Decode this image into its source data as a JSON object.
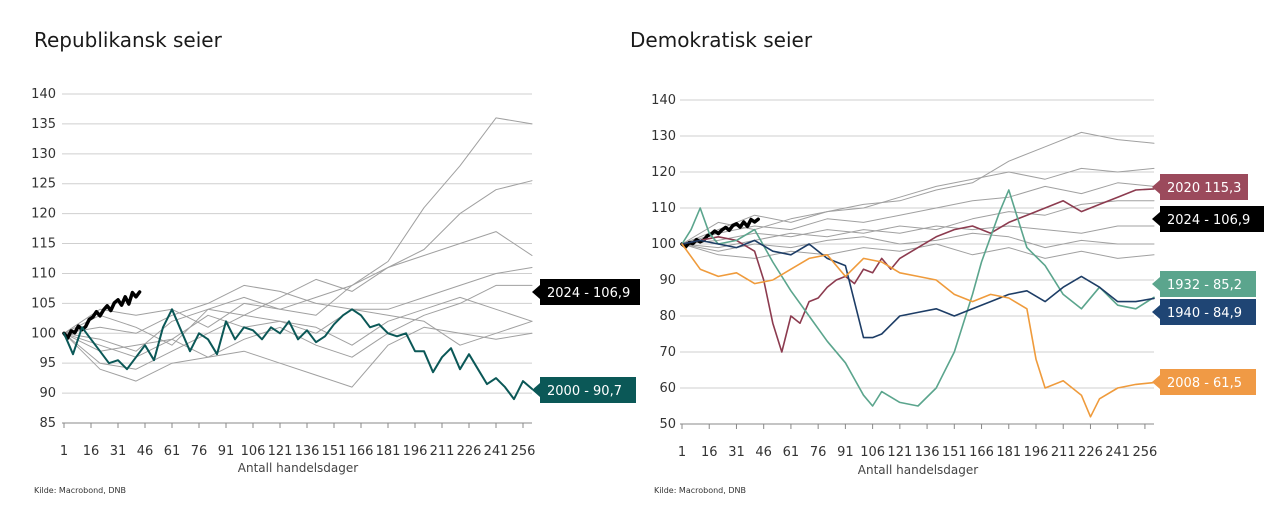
{
  "source_label": "Kilde: Macrobond, DNB",
  "chart_data": [
    {
      "type": "line",
      "title": "Republikansk seier",
      "xlabel": "Antall handelsdager",
      "ylabel": "",
      "ylim": [
        85,
        140
      ],
      "yticks": [
        85,
        90,
        95,
        100,
        105,
        110,
        115,
        120,
        125,
        130,
        135,
        140
      ],
      "xlim": [
        1,
        261
      ],
      "xticks": [
        1,
        16,
        31,
        46,
        61,
        76,
        91,
        106,
        121,
        136,
        151,
        166,
        181,
        196,
        211,
        226,
        241,
        256
      ],
      "grid": "horizontal",
      "series": [
        {
          "name": "2024 - 106,9",
          "color": "#000000",
          "width": 3.5,
          "label": "2024 - 106,9",
          "label_color": "#000000",
          "x": [
            1,
            3,
            5,
            7,
            9,
            11,
            13,
            15,
            17,
            19,
            21,
            23,
            25,
            27,
            29,
            31,
            33,
            35,
            37,
            39,
            41,
            43
          ],
          "y": [
            100,
            99.2,
            100.4,
            100.1,
            101.2,
            100.6,
            101.1,
            102.3,
            102.7,
            103.6,
            102.9,
            103.9,
            104.6,
            103.8,
            105.1,
            105.6,
            104.7,
            106.1,
            104.9,
            106.8,
            106.1,
            106.9
          ]
        },
        {
          "name": "2000 - 90,7",
          "color": "#0b5857",
          "width": 2,
          "label": "2000 - 90,7",
          "label_color": "#0b5857",
          "x": [
            1,
            6,
            11,
            16,
            21,
            26,
            31,
            36,
            41,
            46,
            51,
            56,
            61,
            66,
            71,
            76,
            81,
            86,
            91,
            96,
            101,
            106,
            111,
            116,
            121,
            126,
            131,
            136,
            141,
            146,
            151,
            156,
            161,
            166,
            171,
            176,
            181,
            186,
            191,
            196,
            201,
            206,
            211,
            216,
            221,
            226,
            231,
            236,
            241,
            246,
            251,
            256,
            261
          ],
          "y": [
            100,
            96.5,
            101,
            99,
            97,
            95,
            95.5,
            94,
            96,
            98,
            95.5,
            101,
            104,
            100.5,
            97,
            100,
            99,
            96.5,
            102,
            99,
            101,
            100.5,
            99,
            101,
            100,
            102,
            99,
            100.5,
            98.5,
            99.5,
            101.5,
            103,
            104,
            103,
            101,
            101.5,
            100,
            99.5,
            100,
            97,
            97,
            93.5,
            96,
            97.5,
            94,
            96.5,
            94,
            91.5,
            92.5,
            91,
            89,
            92,
            90.7
          ]
        },
        {
          "name": "",
          "color": "#a0a0a0",
          "width": 1,
          "x": [
            1,
            21,
            41,
            61,
            81,
            101,
            121,
            141,
            161,
            181,
            201,
            221,
            241,
            261
          ],
          "y": [
            100,
            103,
            101,
            98,
            104,
            106,
            104,
            103,
            108,
            112,
            121,
            128,
            136,
            135
          ]
        },
        {
          "name": "",
          "color": "#a0a0a0",
          "width": 1,
          "x": [
            1,
            21,
            41,
            61,
            81,
            101,
            121,
            141,
            161,
            181,
            201,
            221,
            241,
            261
          ],
          "y": [
            100,
            104,
            103,
            104,
            101,
            105,
            104,
            106,
            108,
            111,
            114,
            120,
            124,
            125.5
          ]
        },
        {
          "name": "",
          "color": "#a0a0a0",
          "width": 1,
          "x": [
            1,
            21,
            41,
            61,
            81,
            101,
            121,
            141,
            161,
            181,
            201,
            221,
            241,
            261
          ],
          "y": [
            100,
            99,
            97,
            102,
            104,
            103,
            106,
            109,
            107,
            111,
            113,
            115,
            117,
            113
          ]
        },
        {
          "name": "",
          "color": "#a0a0a0",
          "width": 1,
          "x": [
            1,
            21,
            41,
            61,
            81,
            101,
            121,
            141,
            161,
            181,
            201,
            221,
            241,
            261
          ],
          "y": [
            100,
            98,
            96,
            99,
            103,
            101,
            102,
            100,
            104,
            104,
            106,
            108,
            110,
            111
          ]
        },
        {
          "name": "",
          "color": "#a0a0a0",
          "width": 1,
          "x": [
            1,
            21,
            41,
            61,
            81,
            101,
            121,
            141,
            161,
            181,
            201,
            221,
            241,
            261
          ],
          "y": [
            100,
            95,
            94,
            97,
            100,
            103,
            102,
            101,
            98,
            102,
            104,
            106,
            104,
            102
          ]
        },
        {
          "name": "",
          "color": "#a0a0a0",
          "width": 1,
          "x": [
            1,
            21,
            41,
            61,
            81,
            101,
            121,
            141,
            161,
            181,
            201,
            221,
            241,
            261
          ],
          "y": [
            100,
            94,
            92,
            95,
            96,
            99,
            101,
            98,
            96,
            100,
            103,
            105,
            108,
            108
          ]
        },
        {
          "name": "",
          "color": "#a0a0a0",
          "width": 1,
          "x": [
            1,
            21,
            41,
            61,
            81,
            101,
            121,
            141,
            161,
            181,
            201,
            221,
            241,
            261
          ],
          "y": [
            100,
            97,
            98,
            99,
            96,
            97,
            95,
            93,
            91,
            98,
            101,
            100,
            99,
            100
          ]
        },
        {
          "name": "",
          "color": "#a0a0a0",
          "width": 1,
          "x": [
            1,
            21,
            41,
            61,
            81,
            101,
            121,
            141,
            161,
            181,
            201,
            221,
            241,
            261
          ],
          "y": [
            100,
            101,
            100,
            103,
            105,
            108,
            107,
            105,
            104,
            103,
            102,
            98,
            100,
            102
          ]
        }
      ]
    },
    {
      "type": "line",
      "title": "Demokratisk seier",
      "xlabel": "Antall handelsdager",
      "ylabel": "",
      "ylim": [
        50,
        140
      ],
      "yticks": [
        50,
        60,
        70,
        80,
        90,
        100,
        110,
        120,
        130,
        140
      ],
      "xlim": [
        1,
        261
      ],
      "xticks": [
        1,
        16,
        31,
        46,
        61,
        76,
        91,
        106,
        121,
        136,
        151,
        166,
        181,
        196,
        211,
        226,
        241,
        256
      ],
      "grid": "horizontal",
      "series": [
        {
          "name": "2024 - 106,9",
          "color": "#000000",
          "width": 3.5,
          "label": "2024 - 106,9",
          "label_color": "#000000",
          "x": [
            1,
            3,
            5,
            7,
            9,
            11,
            13,
            15,
            17,
            19,
            21,
            23,
            25,
            27,
            29,
            31,
            33,
            35,
            37,
            39,
            41,
            43
          ],
          "y": [
            100,
            99.2,
            100.4,
            100.1,
            101.2,
            100.6,
            101.1,
            102.3,
            102.7,
            103.6,
            102.9,
            103.9,
            104.6,
            103.8,
            105.1,
            105.6,
            104.7,
            106.1,
            104.9,
            106.8,
            106.1,
            106.9
          ]
        },
        {
          "name": "2020 115,3",
          "color": "#8c3b4f",
          "width": 1.6,
          "label": "2020 115,3",
          "label_color": "#9b4a5c",
          "x": [
            1,
            11,
            21,
            31,
            41,
            46,
            51,
            56,
            61,
            66,
            71,
            76,
            81,
            86,
            91,
            96,
            101,
            106,
            111,
            116,
            121,
            131,
            141,
            151,
            161,
            171,
            181,
            191,
            201,
            211,
            221,
            231,
            241,
            251,
            261
          ],
          "y": [
            100,
            101,
            102,
            101,
            98,
            90,
            78,
            70,
            80,
            78,
            84,
            85,
            88,
            90,
            91,
            89,
            93,
            92,
            96,
            93,
            96,
            99,
            102,
            104,
            105,
            103,
            106,
            108,
            110,
            112,
            109,
            111,
            113,
            115,
            115.3
          ]
        },
        {
          "name": "1932 - 85,2",
          "color": "#5ba58d",
          "width": 1.6,
          "label": "1932 - 85,2",
          "label_color": "#5ba58d",
          "x": [
            1,
            6,
            11,
            16,
            21,
            31,
            41,
            51,
            61,
            71,
            81,
            91,
            101,
            106,
            111,
            121,
            131,
            141,
            151,
            161,
            166,
            171,
            176,
            181,
            186,
            191,
            201,
            211,
            221,
            231,
            241,
            251,
            261
          ],
          "y": [
            100,
            104,
            110,
            103,
            100,
            101,
            104,
            95,
            87,
            80,
            73,
            67,
            58,
            55,
            59,
            56,
            55,
            60,
            70,
            86,
            95,
            102,
            109,
            115,
            107,
            99,
            94,
            86,
            82,
            88,
            83,
            82,
            85.2
          ]
        },
        {
          "name": "1940 - 84,9",
          "color": "#1d3d66",
          "width": 1.6,
          "label": "1940 - 84,9",
          "label_color": "#1f4574",
          "x": [
            1,
            11,
            21,
            31,
            41,
            51,
            61,
            71,
            81,
            91,
            101,
            106,
            111,
            121,
            131,
            141,
            151,
            161,
            171,
            181,
            191,
            201,
            211,
            221,
            231,
            241,
            251,
            261
          ],
          "y": [
            100,
            101,
            100,
            99,
            101,
            98,
            97,
            100,
            96,
            94,
            74,
            74,
            75,
            80,
            81,
            82,
            80,
            82,
            84,
            86,
            87,
            84,
            88,
            91,
            88,
            84,
            84,
            84.9
          ]
        },
        {
          "name": "2008 - 61,5",
          "color": "#ef9b3c",
          "width": 1.6,
          "label": "2008 - 61,5",
          "label_color": "#f09a45",
          "x": [
            1,
            11,
            21,
            31,
            41,
            51,
            61,
            71,
            81,
            91,
            101,
            111,
            121,
            131,
            141,
            151,
            161,
            171,
            181,
            191,
            196,
            201,
            211,
            221,
            226,
            231,
            241,
            251,
            261
          ],
          "y": [
            100,
            93,
            91,
            92,
            89,
            90,
            93,
            96,
            97,
            91,
            96,
            95,
            92,
            91,
            90,
            86,
            84,
            86,
            85,
            82,
            68,
            60,
            62,
            58,
            52,
            57,
            60,
            61,
            61.5
          ]
        },
        {
          "name": "",
          "color": "#a0a0a0",
          "width": 1,
          "x": [
            1,
            21,
            41,
            61,
            81,
            101,
            121,
            141,
            161,
            181,
            201,
            221,
            241,
            261
          ],
          "y": [
            100,
            104,
            108,
            106,
            109,
            111,
            112,
            115,
            117,
            123,
            127,
            131,
            129,
            128
          ]
        },
        {
          "name": "",
          "color": "#a0a0a0",
          "width": 1,
          "x": [
            1,
            21,
            41,
            61,
            81,
            101,
            121,
            141,
            161,
            181,
            201,
            221,
            241,
            261
          ],
          "y": [
            100,
            106,
            104,
            107,
            109,
            110,
            113,
            116,
            118,
            120,
            118,
            121,
            120,
            121
          ]
        },
        {
          "name": "",
          "color": "#a0a0a0",
          "width": 1,
          "x": [
            1,
            21,
            41,
            61,
            81,
            101,
            121,
            141,
            161,
            181,
            201,
            221,
            241,
            261
          ],
          "y": [
            100,
            103,
            105,
            104,
            107,
            106,
            108,
            110,
            112,
            113,
            116,
            114,
            117,
            116
          ]
        },
        {
          "name": "",
          "color": "#a0a0a0",
          "width": 1,
          "x": [
            1,
            21,
            41,
            61,
            81,
            101,
            121,
            141,
            161,
            181,
            201,
            221,
            241,
            261
          ],
          "y": [
            100,
            101,
            103,
            102,
            104,
            103,
            105,
            104,
            107,
            109,
            108,
            111,
            112,
            112
          ]
        },
        {
          "name": "",
          "color": "#a0a0a0",
          "width": 1,
          "x": [
            1,
            21,
            41,
            61,
            81,
            101,
            121,
            141,
            161,
            181,
            201,
            221,
            241,
            261
          ],
          "y": [
            100,
            99,
            101,
            103,
            102,
            104,
            103,
            105,
            104,
            105,
            104,
            103,
            105,
            105
          ]
        },
        {
          "name": "",
          "color": "#a0a0a0",
          "width": 1,
          "x": [
            1,
            21,
            41,
            61,
            81,
            101,
            121,
            141,
            161,
            181,
            201,
            221,
            241,
            261
          ],
          "y": [
            100,
            98,
            100,
            99,
            101,
            102,
            100,
            101,
            103,
            102,
            99,
            101,
            100,
            100
          ]
        },
        {
          "name": "",
          "color": "#a0a0a0",
          "width": 1,
          "x": [
            1,
            21,
            41,
            61,
            81,
            101,
            121,
            141,
            161,
            181,
            201,
            221,
            241,
            261
          ],
          "y": [
            100,
            97,
            96,
            98,
            97,
            99,
            98,
            100,
            97,
            99,
            96,
            98,
            96,
            97
          ]
        }
      ]
    }
  ]
}
